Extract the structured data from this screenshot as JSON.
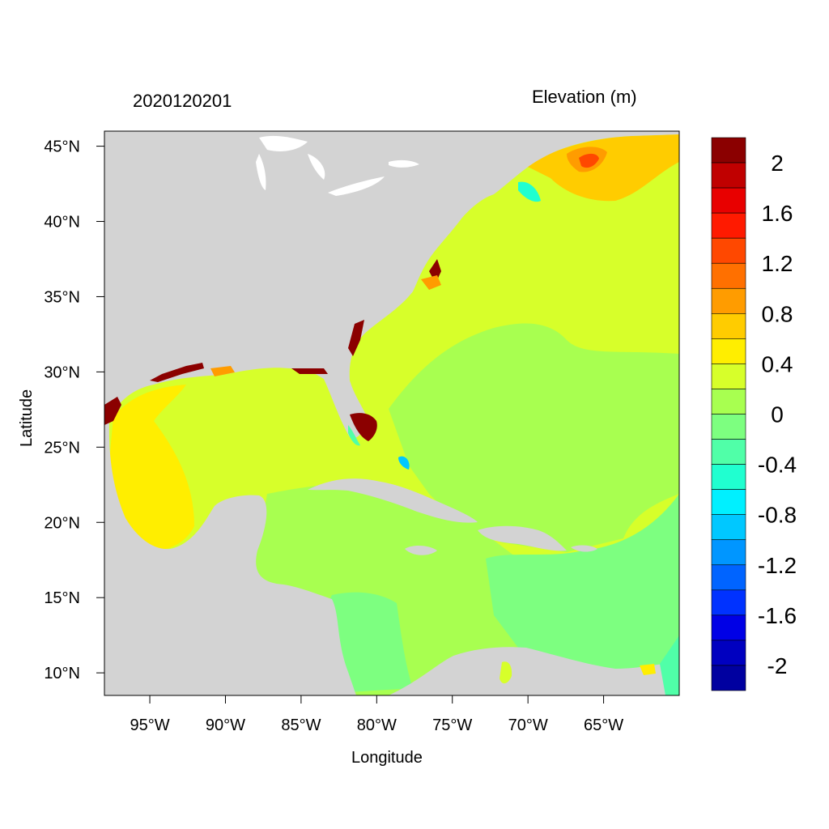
{
  "map": {
    "date": "2020120201",
    "variable": "Elevation (m)",
    "xlabel": "Longitude",
    "ylabel": "Latitude",
    "lon_ticks": [
      "95°W",
      "90°W",
      "85°W",
      "80°W",
      "75°W",
      "70°W",
      "65°W"
    ],
    "lat_ticks": [
      "45°N",
      "40°N",
      "35°N",
      "30°N",
      "25°N",
      "20°N",
      "15°N",
      "10°N"
    ],
    "land_color": "#d3d3d3",
    "lon_range": [
      -98,
      -60
    ],
    "lat_range": [
      8.5,
      46
    ]
  },
  "legend": {
    "labels": [
      "2",
      "1.6",
      "1.2",
      "0.8",
      "0.4",
      "0",
      "-0.4",
      "-0.8",
      "-1.2",
      "-1.6",
      "-2"
    ],
    "colors": [
      "#8b0000",
      "#c00000",
      "#e80000",
      "#ff1a00",
      "#ff4800",
      "#ff7000",
      "#ff9c00",
      "#ffcc00",
      "#ffee00",
      "#d7ff2a",
      "#a8ff50",
      "#7dff80",
      "#50ffa8",
      "#20ffd0",
      "#00f0ff",
      "#00c8ff",
      "#0096ff",
      "#0064ff",
      "#0032ff",
      "#0000e6",
      "#0000c0",
      "#0000a0"
    ]
  },
  "regions": {
    "northeast_high": "#ff9c00",
    "shelf_high": "#ffcc00",
    "atlantic_main": "#d7ff2a",
    "atlantic_interior": "#a8ff50",
    "caribbean": "#a8ff50",
    "caribbean_low": "#7dff80",
    "gulf_west": "#ffee00",
    "gulf_main": "#d7ff2a",
    "florida_surge": "#8b0000"
  }
}
